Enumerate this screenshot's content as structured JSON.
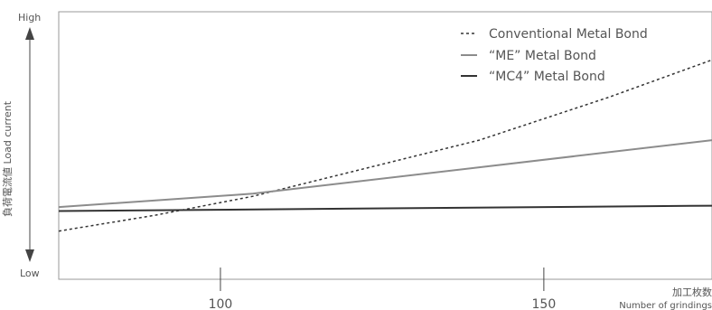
{
  "chart_data": {
    "type": "line",
    "xlabel_ja": "加工枚数",
    "xlabel_en": "Number of grindings",
    "ylabel": "負荷電流値 Load current",
    "y_high_label": "High",
    "y_low_label": "Low",
    "x_ticks": [
      100,
      150
    ],
    "xlim": [
      75,
      176
    ],
    "ylim": [
      0,
      1
    ],
    "grid": false,
    "legend_position": "top-right",
    "series": [
      {
        "name": "Conventional Metal Bond",
        "style": "dashed",
        "color": "#333333",
        "x": [
          75,
          90,
          105,
          120,
          140,
          160,
          176
        ],
        "y": [
          0.18,
          0.24,
          0.31,
          0.4,
          0.52,
          0.68,
          0.82
        ]
      },
      {
        "name": "“ME” Metal Bond",
        "style": "solid",
        "color": "#8c8c8c",
        "x": [
          75,
          105,
          176
        ],
        "y": [
          0.27,
          0.32,
          0.52
        ]
      },
      {
        "name": "“MC4” Metal Bond",
        "style": "solid",
        "color": "#333333",
        "x": [
          75,
          176
        ],
        "y": [
          0.255,
          0.275
        ]
      }
    ]
  }
}
